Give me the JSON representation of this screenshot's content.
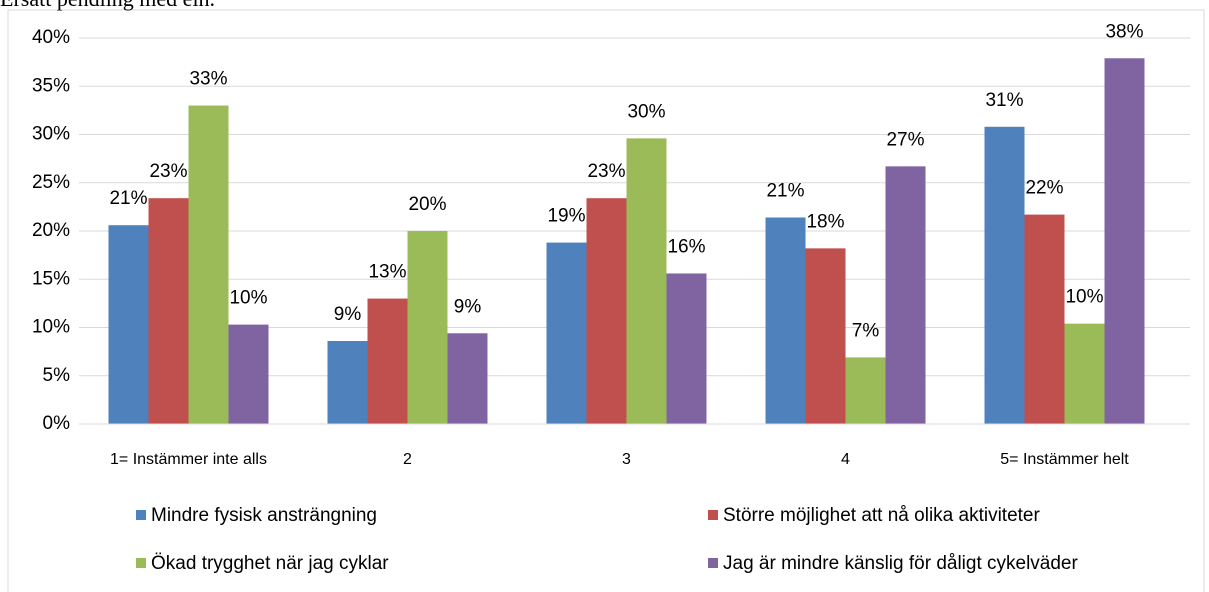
{
  "chart_data": {
    "type": "bar",
    "title": "Ersatt pendling med elh.",
    "categories": [
      "1= Instämmer inte alls",
      "2",
      "3",
      "4",
      "5= Instämmer helt"
    ],
    "series": [
      {
        "name": "Mindre fysisk ansträngning",
        "color": "#4f81bd",
        "values": [
          20.6,
          8.6,
          18.8,
          21.4,
          30.8
        ],
        "value_labels": [
          "21%",
          "9%",
          "19%",
          "21%",
          "31%"
        ]
      },
      {
        "name": "Större möjlighet att nå olika aktiviteter",
        "color": "#c0504d",
        "values": [
          23.4,
          13.0,
          23.4,
          18.2,
          21.7
        ],
        "value_labels": [
          "23%",
          "13%",
          "23%",
          "18%",
          "22%"
        ]
      },
      {
        "name": "Ökad trygghet när jag cyklar",
        "color": "#9bbb59",
        "values": [
          33.0,
          20.0,
          29.6,
          6.9,
          10.4
        ],
        "value_labels": [
          "33%",
          "20%",
          "30%",
          "7%",
          "10%"
        ]
      },
      {
        "name": "Jag är mindre känslig för dåligt cykelväder",
        "color": "#8064a2",
        "values": [
          10.3,
          9.4,
          15.6,
          26.7,
          37.9
        ],
        "value_labels": [
          "10%",
          "9%",
          "16%",
          "27%",
          "38%"
        ]
      }
    ],
    "ylim": [
      0,
      40
    ],
    "yticks": [
      {
        "value": 0,
        "label": "0%"
      },
      {
        "value": 5,
        "label": "5%"
      },
      {
        "value": 10,
        "label": "10%"
      },
      {
        "value": 15,
        "label": "15%"
      },
      {
        "value": 20,
        "label": "20%"
      },
      {
        "value": 25,
        "label": "25%"
      },
      {
        "value": 30,
        "label": "30%"
      },
      {
        "value": 35,
        "label": "35%"
      },
      {
        "value": 40,
        "label": "40%"
      }
    ],
    "grid": true,
    "legend": "bottom"
  }
}
